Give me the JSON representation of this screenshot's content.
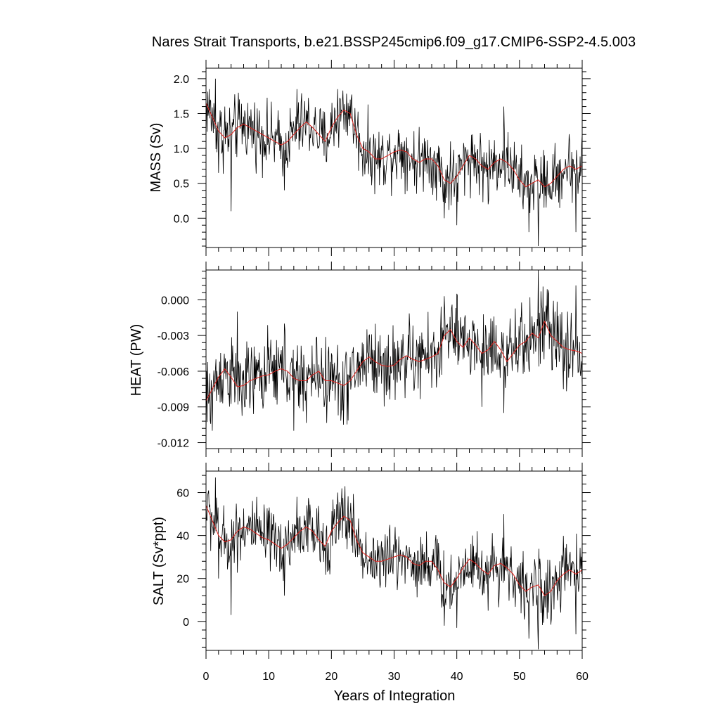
{
  "title": "Nares Strait Transports, b.e21.BSSP245cmip6.f09_g17.CMIP6-SSP2-4.5.003",
  "chart_data": [
    {
      "type": "line",
      "ylabel": "MASS (Sv)",
      "xlim": [
        0,
        60
      ],
      "ylim": [
        -0.42,
        2.15
      ],
      "yticks": [
        2.0,
        1.5,
        1.0,
        0.5,
        0.0
      ],
      "ytick_labels": [
        "2.0",
        "1.5",
        "1.0",
        "0.5",
        "0.0"
      ],
      "smooth_x": [
        0,
        1,
        2,
        3,
        4,
        5,
        6,
        7,
        8,
        9,
        10,
        11,
        12,
        13,
        14,
        15,
        16,
        17,
        18,
        19,
        20,
        21,
        22,
        23,
        24,
        25,
        26,
        27,
        28,
        29,
        30,
        31,
        32,
        33,
        34,
        35,
        36,
        37,
        38,
        39,
        40,
        41,
        42,
        43,
        44,
        45,
        46,
        47,
        48,
        49,
        50,
        51,
        52,
        53,
        54,
        55,
        56,
        57,
        58,
        59,
        60
      ],
      "smooth_y": [
        1.65,
        1.45,
        1.25,
        1.15,
        1.2,
        1.3,
        1.35,
        1.3,
        1.25,
        1.2,
        1.15,
        1.1,
        1.05,
        1.1,
        1.2,
        1.3,
        1.38,
        1.3,
        1.2,
        1.1,
        1.3,
        1.45,
        1.55,
        1.5,
        1.2,
        1.0,
        0.95,
        0.85,
        0.85,
        0.9,
        0.95,
        0.98,
        0.95,
        0.85,
        0.8,
        0.85,
        0.85,
        0.75,
        0.55,
        0.5,
        0.6,
        0.75,
        0.9,
        0.85,
        0.75,
        0.7,
        0.8,
        0.85,
        0.8,
        0.7,
        0.55,
        0.45,
        0.5,
        0.55,
        0.45,
        0.5,
        0.6,
        0.7,
        0.75,
        0.7,
        0.75
      ],
      "raw_anchor_x": [
        0,
        0.5,
        1.5,
        2,
        3,
        4,
        5,
        10,
        12.5,
        14.5,
        20,
        21,
        22.5,
        23,
        24,
        25,
        30,
        33,
        35,
        38,
        39,
        40,
        42.5,
        45,
        47.5,
        50,
        51.5,
        53,
        54,
        56,
        58,
        59,
        60
      ],
      "raw_anchor_y": [
        1.6,
        1.85,
        2.0,
        0.65,
        1.6,
        0.1,
        1.35,
        1.2,
        0.4,
        1.85,
        1.2,
        1.85,
        1.5,
        1.7,
        1.0,
        0.6,
        1.0,
        0.7,
        1.1,
        0.0,
        1.1,
        -0.1,
        1.2,
        0.2,
        1.6,
        0.4,
        -0.2,
        -0.4,
        0.9,
        0.4,
        1.1,
        -0.2,
        1.2
      ],
      "raw_amplitude": 0.23
    },
    {
      "type": "line",
      "ylabel": "HEAT (PW)",
      "xlim": [
        0,
        60
      ],
      "ylim": [
        -0.0125,
        0.0025
      ],
      "yticks": [
        0.0,
        -0.003,
        -0.006,
        -0.009,
        -0.012
      ],
      "ytick_labels": [
        "0.000",
        "-0.003",
        "-0.006",
        "-0.009",
        "-0.012"
      ],
      "smooth_x": [
        0,
        1,
        2,
        3,
        4,
        5,
        6,
        7,
        8,
        9,
        10,
        11,
        12,
        13,
        14,
        15,
        16,
        17,
        18,
        19,
        20,
        21,
        22,
        23,
        24,
        25,
        26,
        27,
        28,
        29,
        30,
        31,
        32,
        33,
        34,
        35,
        36,
        37,
        38,
        39,
        40,
        41,
        42,
        43,
        44,
        45,
        46,
        47,
        48,
        49,
        50,
        51,
        52,
        53,
        54,
        55,
        56,
        57,
        58,
        59,
        60
      ],
      "smooth_y": [
        -0.0085,
        -0.0075,
        -0.0065,
        -0.0058,
        -0.0065,
        -0.0073,
        -0.0072,
        -0.0068,
        -0.0066,
        -0.0064,
        -0.0063,
        -0.006,
        -0.0058,
        -0.006,
        -0.0066,
        -0.0068,
        -0.0068,
        -0.0063,
        -0.006,
        -0.0068,
        -0.0068,
        -0.007,
        -0.0072,
        -0.0068,
        -0.006,
        -0.0052,
        -0.0048,
        -0.0052,
        -0.0055,
        -0.0056,
        -0.0055,
        -0.005,
        -0.0047,
        -0.005,
        -0.0052,
        -0.005,
        -0.0048,
        -0.0045,
        -0.003,
        -0.0025,
        -0.0035,
        -0.004,
        -0.0032,
        -0.0038,
        -0.0045,
        -0.0042,
        -0.0035,
        -0.0042,
        -0.0052,
        -0.0045,
        -0.0038,
        -0.0035,
        -0.0028,
        -0.0032,
        -0.0018,
        -0.003,
        -0.0035,
        -0.004,
        -0.0042,
        -0.0043,
        -0.0045
      ],
      "raw_anchor_x": [
        0,
        1,
        2,
        5,
        10,
        12.5,
        14,
        17,
        20,
        24,
        26,
        30,
        35,
        38,
        39,
        40,
        44,
        47.5,
        50,
        53,
        55,
        57,
        59,
        60
      ],
      "raw_anchor_y": [
        -0.012,
        -0.011,
        -0.008,
        -0.001,
        -0.004,
        -0.002,
        -0.011,
        -0.007,
        -0.0045,
        -0.006,
        -0.003,
        -0.0045,
        -0.004,
        0.0003,
        -0.0035,
        0.0005,
        -0.009,
        -0.0095,
        -0.003,
        0.0025,
        -0.0025,
        -0.0075,
        0.0012,
        -0.0075
      ],
      "raw_amplitude": 0.0016
    },
    {
      "type": "line",
      "ylabel": "SALT (Sv*ppt)",
      "xlim": [
        0,
        60
      ],
      "ylim": [
        -13.5,
        70
      ],
      "yticks": [
        60,
        40,
        20,
        0
      ],
      "ytick_labels": [
        "60",
        "40",
        "20",
        "0"
      ],
      "smooth_x": [
        0,
        1,
        2,
        3,
        4,
        5,
        6,
        7,
        8,
        9,
        10,
        11,
        12,
        13,
        14,
        15,
        16,
        17,
        18,
        19,
        20,
        21,
        22,
        23,
        24,
        25,
        26,
        27,
        28,
        29,
        30,
        31,
        32,
        33,
        34,
        35,
        36,
        37,
        38,
        39,
        40,
        41,
        42,
        43,
        44,
        45,
        46,
        47,
        48,
        49,
        50,
        51,
        52,
        53,
        54,
        55,
        56,
        57,
        58,
        59,
        60
      ],
      "smooth_y": [
        54,
        47,
        40,
        37,
        38,
        42,
        44,
        43,
        41,
        39,
        38,
        36,
        34,
        36,
        39,
        42,
        44,
        42,
        38,
        35,
        42,
        46,
        49,
        47,
        38,
        32,
        30,
        28,
        28,
        29,
        30,
        31,
        30,
        27,
        26,
        28,
        28,
        24,
        18,
        16,
        20,
        25,
        29,
        27,
        24,
        22,
        26,
        27,
        25,
        22,
        17,
        14,
        16,
        17,
        12,
        14,
        19,
        22,
        24,
        22,
        24
      ],
      "raw_anchor_x": [
        0,
        1.5,
        2,
        4,
        10,
        12.5,
        14.5,
        20,
        21,
        23,
        25,
        30,
        33,
        38,
        40,
        42.5,
        45,
        47.5,
        50,
        51.5,
        53,
        56,
        59,
        60
      ],
      "raw_anchor_y": [
        55,
        67,
        20,
        3,
        38,
        12,
        58,
        40,
        60,
        50,
        20,
        32,
        22,
        -2,
        -3,
        40,
        5,
        50,
        13,
        -8,
        -13,
        15,
        -6,
        38
      ],
      "raw_amplitude": 7.5
    }
  ],
  "xaxis": {
    "label": "Years of Integration",
    "ticks": [
      0,
      10,
      20,
      30,
      40,
      50,
      60
    ],
    "tick_labels": [
      "0",
      "10",
      "20",
      "30",
      "40",
      "50",
      "60"
    ]
  },
  "colors": {
    "raw_line": "#000000",
    "smooth_line": "#e0201b",
    "axes": "#000000"
  }
}
